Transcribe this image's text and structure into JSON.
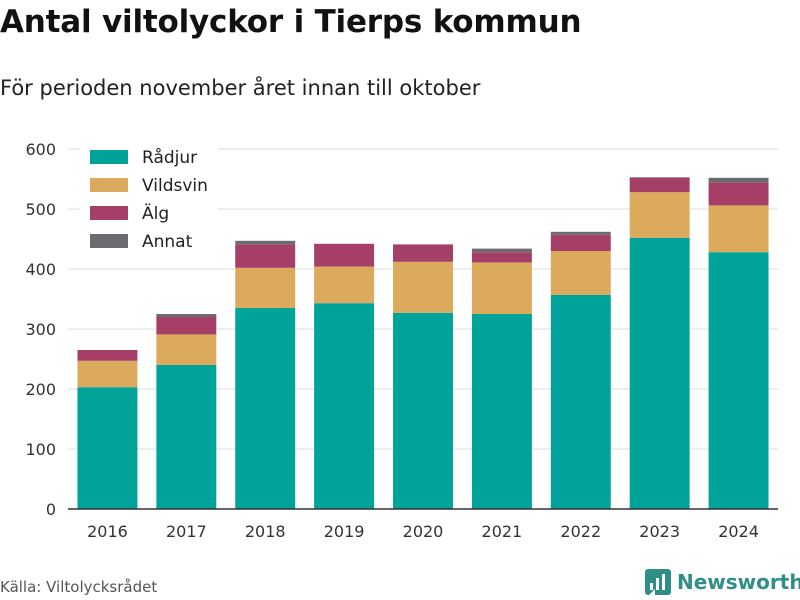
{
  "title": "Antal viltolyckor i Tierps kommun",
  "subtitle": "För perioden november året innan till oktober",
  "source": "Källa: Viltolycksrådet",
  "brand": {
    "name": "Newsworthy",
    "icon": "newsworthy-logo-icon",
    "color": "#2f8f87"
  },
  "chart_data": {
    "type": "bar",
    "stacked": true,
    "categories": [
      "2016",
      "2017",
      "2018",
      "2019",
      "2020",
      "2021",
      "2022",
      "2023",
      "2024"
    ],
    "series": [
      {
        "name": "Rådjur",
        "color": "#00a29a",
        "values": [
          203,
          240,
          335,
          343,
          327,
          325,
          357,
          452,
          428
        ]
      },
      {
        "name": "Vildsvin",
        "color": "#dcaa5c",
        "values": [
          44,
          51,
          67,
          61,
          85,
          86,
          73,
          76,
          78
        ]
      },
      {
        "name": "Älg",
        "color": "#a63f67",
        "values": [
          18,
          29,
          39,
          38,
          29,
          17,
          27,
          24,
          38
        ]
      },
      {
        "name": "Annat",
        "color": "#6c6c70",
        "values": [
          0,
          5,
          6,
          0,
          0,
          6,
          5,
          1,
          8
        ]
      }
    ],
    "ylim": [
      0,
      600
    ],
    "yticks": [
      0,
      100,
      200,
      300,
      400,
      500,
      600
    ],
    "xlabel": "",
    "ylabel": "",
    "grid": true,
    "legend_position": "top-left"
  }
}
